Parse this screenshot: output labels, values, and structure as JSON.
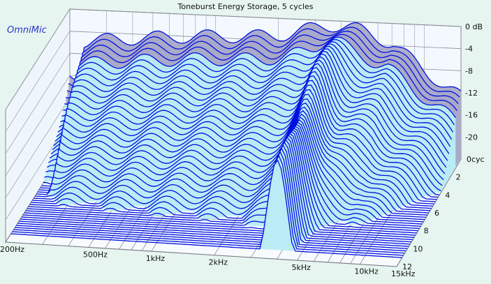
{
  "chart_data": {
    "type": "waterfall-3d",
    "title": "Toneburst Energy Storage, 5 cycles",
    "brand": "OmniMic",
    "z_ticks": [
      "0 dB",
      "-4",
      "-8",
      "-12",
      "-16",
      "-20"
    ],
    "x_ticks": [
      {
        "f": 200,
        "label": "200Hz"
      },
      {
        "f": 500,
        "label": "500Hz"
      },
      {
        "f": 1000,
        "label": "1kHz"
      },
      {
        "f": 2000,
        "label": "2kHz"
      },
      {
        "f": 5000,
        "label": "5kHz"
      },
      {
        "f": 10000,
        "label": "10kHz"
      },
      {
        "f": 15000,
        "label": "15kHz"
      }
    ],
    "y_ticks": [
      "0cyc",
      "2",
      "4",
      "6",
      "8",
      "10",
      "12"
    ],
    "x_range": [
      200,
      15000
    ],
    "y_range_cycles": [
      0,
      12
    ],
    "z_range_db": [
      -24,
      0
    ],
    "grid": true,
    "colors": {
      "back": "#e6f5ef",
      "trace": "#0010e0",
      "fill_light": "#b8ecf4",
      "fill_dark": "#a9a9c8",
      "grid": "#5a5a70"
    }
  }
}
